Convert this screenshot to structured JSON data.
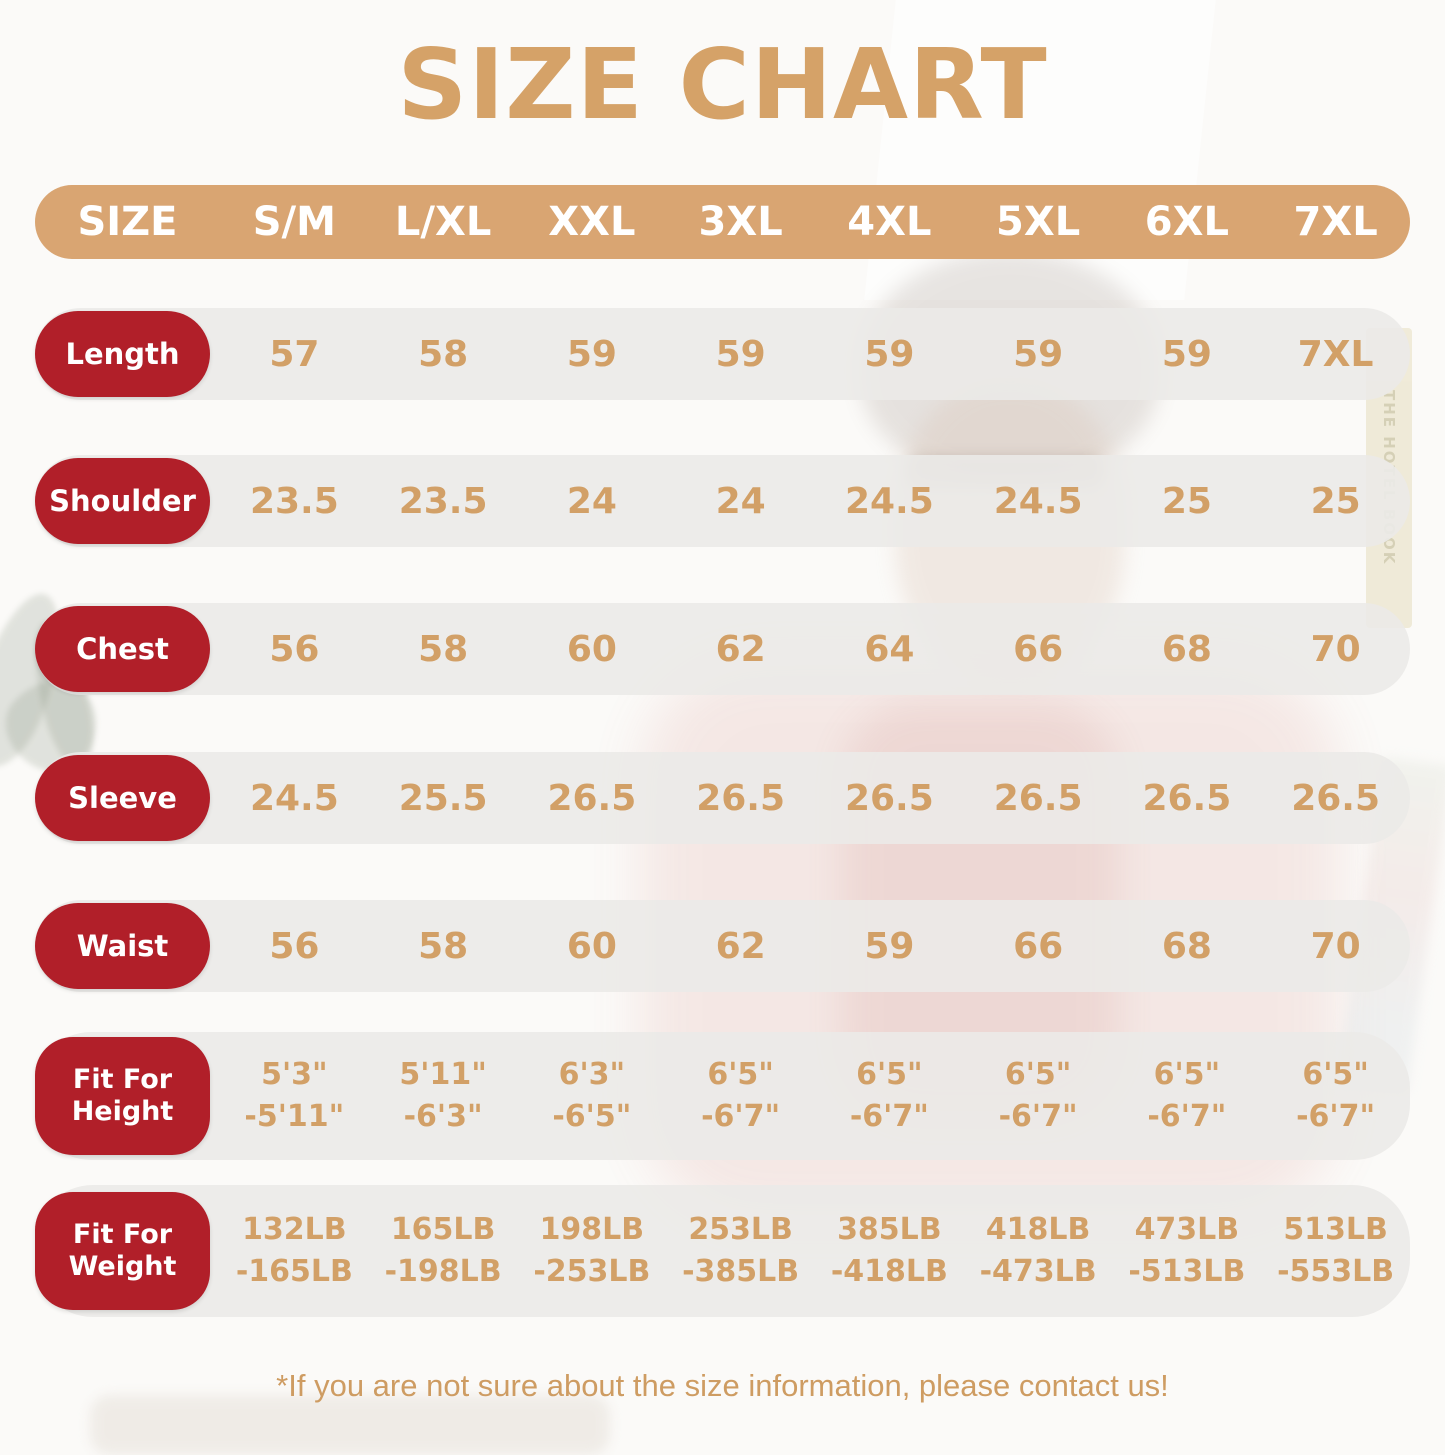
{
  "title": "SIZE CHART",
  "footer_note": "*If you are not sure about the size information, please contact us!",
  "background": {
    "book_spine_text": "THE HOTEL BOOK"
  },
  "colors": {
    "tan_accent": "#D5A268",
    "header_bg": "#D9A572",
    "label_red": "#B11F29",
    "row_bg": "#EBEAE8",
    "value_text": "#D2A067"
  },
  "chart_data": {
    "type": "table",
    "title": "SIZE CHART",
    "columns": [
      "SIZE",
      "S/M",
      "L/XL",
      "XXL",
      "3XL",
      "4XL",
      "5XL",
      "6XL",
      "7XL"
    ],
    "rows": [
      {
        "label_lines": [
          "Length"
        ],
        "values": [
          "57",
          "58",
          "59",
          "59",
          "59",
          "59",
          "59",
          "7XL"
        ]
      },
      {
        "label_lines": [
          "Shoulder"
        ],
        "values": [
          "23.5",
          "23.5",
          "24",
          "24",
          "24.5",
          "24.5",
          "25",
          "25"
        ]
      },
      {
        "label_lines": [
          "Chest"
        ],
        "values": [
          "56",
          "58",
          "60",
          "62",
          "64",
          "66",
          "68",
          "70"
        ]
      },
      {
        "label_lines": [
          "Sleeve"
        ],
        "values": [
          "24.5",
          "25.5",
          "26.5",
          "26.5",
          "26.5",
          "26.5",
          "26.5",
          "26.5"
        ]
      },
      {
        "label_lines": [
          "Waist"
        ],
        "values": [
          "56",
          "58",
          "60",
          "62",
          "59",
          "66",
          "68",
          "70"
        ]
      },
      {
        "label_lines": [
          "Fit For",
          "Height"
        ],
        "values": [
          [
            "5'3\"",
            "-5'11\""
          ],
          [
            "5'11\"",
            "-6'3\""
          ],
          [
            "6'3\"",
            "-6'5\""
          ],
          [
            "6'5\"",
            "-6'7\""
          ],
          [
            "6'5\"",
            "-6'7\""
          ],
          [
            "6'5\"",
            "-6'7\""
          ],
          [
            "6'5\"",
            "-6'7\""
          ],
          [
            "6'5\"",
            "-6'7\""
          ]
        ]
      },
      {
        "label_lines": [
          "Fit For",
          "Weight"
        ],
        "values": [
          [
            "132LB",
            "-165LB"
          ],
          [
            "165LB",
            "-198LB"
          ],
          [
            "198LB",
            "-253LB"
          ],
          [
            "253LB",
            "-385LB"
          ],
          [
            "385LB",
            "-418LB"
          ],
          [
            "418LB",
            "-473LB"
          ],
          [
            "473LB",
            "-513LB"
          ],
          [
            "513LB",
            "-553LB"
          ]
        ]
      }
    ]
  }
}
